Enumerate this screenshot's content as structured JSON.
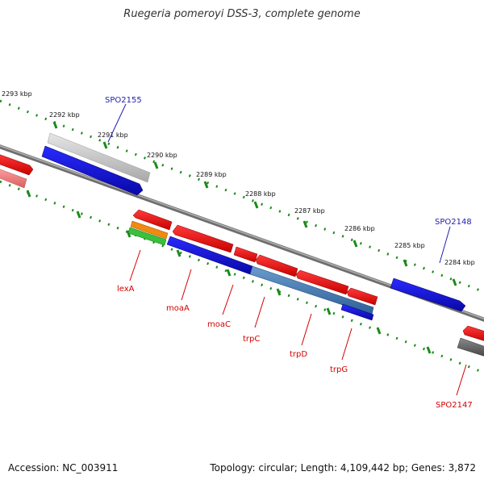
{
  "title": "Ruegeria pomeroyi DSS-3, complete genome",
  "footer": {
    "accession": "Accession: NC_003911",
    "summary": "Topology: circular; Length: 4,109,442 bp; Genes: 3,872"
  },
  "scale": {
    "ticks": [
      "2293 kbp",
      "2292 kbp",
      "2291 kbp",
      "2290 kbp",
      "2289 kbp",
      "2288 kbp",
      "2287 kbp",
      "2286 kbp",
      "2285 kbp",
      "2284 kbp"
    ]
  },
  "genes": [
    {
      "name": "SPO2155",
      "color": "#1f1fb0"
    },
    {
      "name": "SPO2148",
      "color": "#1f1fb0"
    },
    {
      "name": "lexA",
      "color": "#d40000"
    },
    {
      "name": "moaA",
      "color": "#d40000"
    },
    {
      "name": "moaC",
      "color": "#d40000"
    },
    {
      "name": "trpC",
      "color": "#d40000"
    },
    {
      "name": "trpD",
      "color": "#d40000"
    },
    {
      "name": "trpG",
      "color": "#d40000"
    },
    {
      "name": "SPO2147",
      "color": "#d40000"
    }
  ],
  "colors": {
    "forward_cds": "#e01818",
    "reverse_cds": "#1a1ad8",
    "gene_red": "#e82020",
    "gene_blue": "#1818e0",
    "steel_blue": "#4a80b8",
    "orange": "#f08a10",
    "green": "#3ac03a",
    "pink": "#f07a7a",
    "light_gray": "#c8c8c8",
    "dark_gray": "#5a5a5a",
    "backbone": "#808080",
    "tick_green": "#1a8a1a"
  }
}
